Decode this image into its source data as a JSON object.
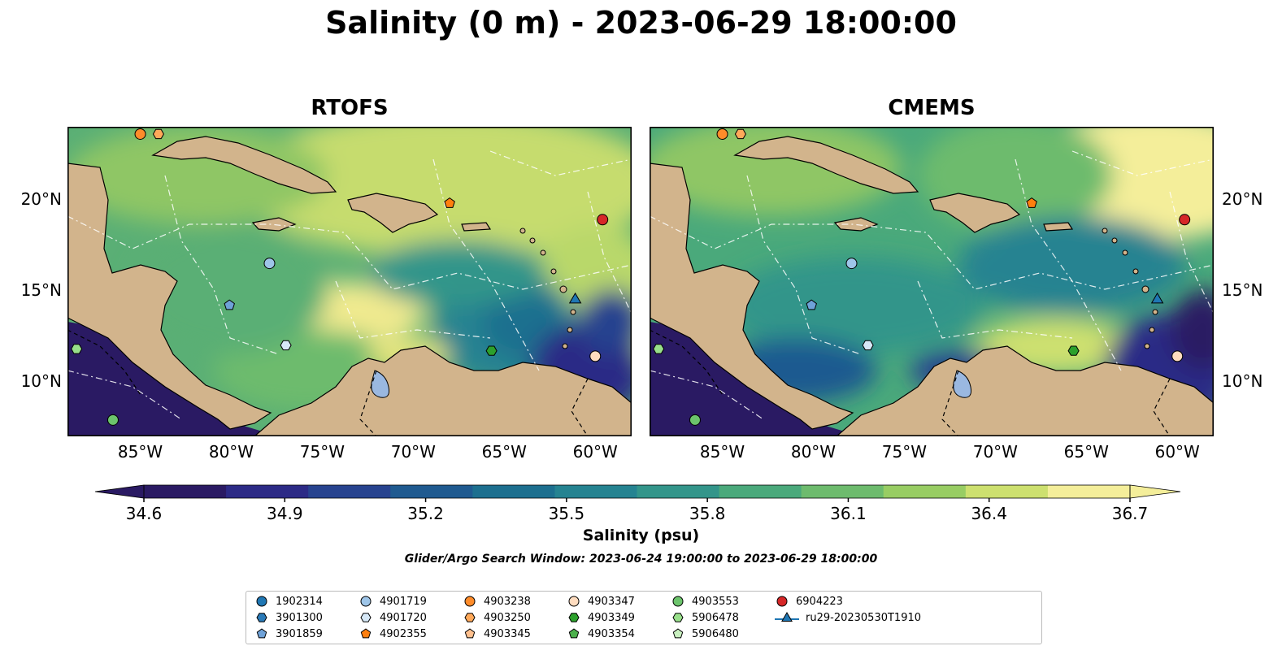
{
  "title": "Salinity (0 m) - 2023-06-29 18:00:00",
  "panels": [
    {
      "title": "RTOFS"
    },
    {
      "title": "CMEMS"
    }
  ],
  "axes": {
    "x_ticks": [
      "85°W",
      "80°W",
      "75°W",
      "70°W",
      "65°W",
      "60°W"
    ],
    "x_tick_values": [
      -85,
      -80,
      -75,
      -70,
      -65,
      -60
    ],
    "y_ticks": [
      "20°N",
      "15°N",
      "10°N"
    ],
    "y_tick_values": [
      20,
      15,
      10
    ],
    "lon_range": [
      -89,
      -58
    ],
    "lat_range": [
      7,
      24
    ]
  },
  "colorbar": {
    "label": "Salinity (psu)",
    "ticks": [
      "34.6",
      "34.9",
      "35.2",
      "35.5",
      "35.8",
      "36.1",
      "36.4",
      "36.7"
    ],
    "tick_values": [
      34.6,
      34.9,
      35.2,
      35.5,
      35.8,
      36.1,
      36.4,
      36.7
    ],
    "range": [
      34.6,
      36.7
    ],
    "extend": "both",
    "colors": [
      "#2a1a63",
      "#2c2a86",
      "#27438f",
      "#1f5a90",
      "#1c6f8f",
      "#258391",
      "#33958a",
      "#4aa97b",
      "#6dbb6d",
      "#98cd63",
      "#cde06f",
      "#f4ee9a"
    ]
  },
  "search_window": "Glider/Argo Search Window: 2023-06-24 19:00:00 to 2023-06-29 18:00:00",
  "legend": {
    "items": [
      {
        "label": "1902314",
        "marker": "circle",
        "color": "#1f77b4"
      },
      {
        "label": "3901300",
        "marker": "hexagon",
        "color": "#2a7ab8"
      },
      {
        "label": "3901859",
        "marker": "pentagon",
        "color": "#6fa2d8"
      },
      {
        "label": "4901719",
        "marker": "circle",
        "color": "#9ec5e8"
      },
      {
        "label": "4901720",
        "marker": "hexagon",
        "color": "#d6e8f7"
      },
      {
        "label": "4902355",
        "marker": "pentagon",
        "color": "#ff7f0e"
      },
      {
        "label": "4903238",
        "marker": "circle",
        "color": "#ff8c2a"
      },
      {
        "label": "4903250",
        "marker": "hexagon",
        "color": "#ffa95a"
      },
      {
        "label": "4903345",
        "marker": "pentagon",
        "color": "#ffc08e"
      },
      {
        "label": "4903347",
        "marker": "circle",
        "color": "#ffdcbf"
      },
      {
        "label": "4903349",
        "marker": "hexagon",
        "color": "#2ca02c"
      },
      {
        "label": "4903354",
        "marker": "pentagon",
        "color": "#4cb04c"
      },
      {
        "label": "4903553",
        "marker": "circle",
        "color": "#6cc46c"
      },
      {
        "label": "5906478",
        "marker": "hexagon",
        "color": "#98df8a"
      },
      {
        "label": "5906480",
        "marker": "pentagon",
        "color": "#c9f0c0"
      },
      {
        "label": "6904223",
        "marker": "circle",
        "color": "#d62728"
      },
      {
        "label": "ru29-20230530T1910",
        "marker": "triangle-line",
        "color": "#1f77b4"
      }
    ]
  },
  "observations": [
    {
      "id": "4903238",
      "lon": -85.0,
      "lat": 23.6
    },
    {
      "id": "4903250",
      "lon": -84.0,
      "lat": 23.6
    },
    {
      "id": "4902355",
      "lon": -68.0,
      "lat": 19.8
    },
    {
      "id": "6904223",
      "lon": -59.6,
      "lat": 18.9
    },
    {
      "id": "4901719",
      "lon": -77.9,
      "lat": 16.5
    },
    {
      "id": "3901859",
      "lon": -80.1,
      "lat": 14.2
    },
    {
      "id": "ru29-20230530T1910",
      "lon": -61.1,
      "lat": 14.5
    },
    {
      "id": "4901720",
      "lon": -77.0,
      "lat": 12.0
    },
    {
      "id": "4903349",
      "lon": -65.7,
      "lat": 11.7
    },
    {
      "id": "4903347",
      "lon": -60.0,
      "lat": 11.4
    },
    {
      "id": "5906478",
      "lon": -88.5,
      "lat": 11.8
    },
    {
      "id": "4903553",
      "lon": -86.5,
      "lat": 7.9
    }
  ]
}
